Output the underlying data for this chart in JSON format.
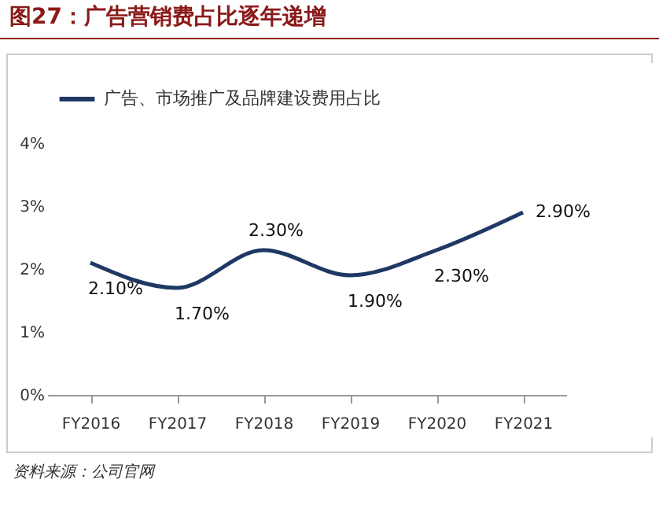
{
  "chart_data": {
    "type": "line",
    "title": "图27：广告营销费占比逐年递增",
    "categories": [
      "FY2016",
      "FY2017",
      "FY2018",
      "FY2019",
      "FY2020",
      "FY2021"
    ],
    "series": [
      {
        "name": "广告、市场推广及品牌建设费用占比",
        "color": "#1f3864",
        "values": [
          2.1,
          1.7,
          2.3,
          1.9,
          2.3,
          2.9
        ],
        "value_labels": [
          "2.10%",
          "1.70%",
          "2.30%",
          "1.90%",
          "2.30%",
          "2.90%"
        ]
      }
    ],
    "ylim": [
      0,
      4
    ],
    "yticks": [
      {
        "value": 0,
        "label": "0%"
      },
      {
        "value": 1,
        "label": "1%"
      },
      {
        "value": 2,
        "label": "2%"
      },
      {
        "value": 3,
        "label": "3%"
      },
      {
        "value": 4,
        "label": "4%"
      }
    ],
    "grid": false,
    "legend": "top",
    "marker": "none",
    "line_style": "solid",
    "annotations": [
      "资料来源：公司官网"
    ]
  }
}
